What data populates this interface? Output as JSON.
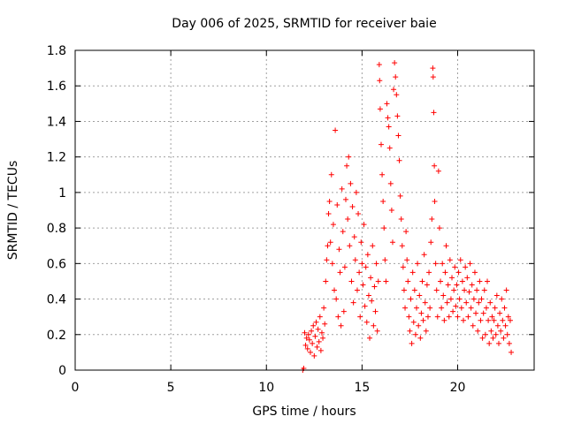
{
  "chart_data": {
    "type": "scatter",
    "title": "Day 006 of 2025, SRMTID for receiver baie",
    "xlabel": "GPS time / hours",
    "ylabel": "SRMTID / TECUs",
    "xlim": [
      0,
      24
    ],
    "ylim": [
      0,
      1.8
    ],
    "xticks": [
      0,
      5,
      10,
      15,
      20
    ],
    "yticks": [
      0,
      0.2,
      0.4,
      0.6,
      0.8,
      1,
      1.2,
      1.4,
      1.6,
      1.8
    ],
    "xtick_labels": [
      "0",
      "5",
      "10",
      "15",
      "20"
    ],
    "ytick_labels": [
      "0",
      "0.2",
      "0.4",
      "0.6",
      "0.8",
      "1",
      "1.2",
      "1.4",
      "1.6",
      "1.8"
    ],
    "grid": true,
    "marker": "plus",
    "color": "#ff0000",
    "series": [
      {
        "name": "SRMTID",
        "points": [
          [
            11.9,
            0.0
          ],
          [
            11.95,
            0.01
          ],
          [
            12.0,
            0.21
          ],
          [
            12.05,
            0.14
          ],
          [
            12.1,
            0.18
          ],
          [
            12.15,
            0.12
          ],
          [
            12.2,
            0.2
          ],
          [
            12.25,
            0.17
          ],
          [
            12.3,
            0.1
          ],
          [
            12.35,
            0.22
          ],
          [
            12.4,
            0.15
          ],
          [
            12.45,
            0.25
          ],
          [
            12.5,
            0.08
          ],
          [
            12.55,
            0.19
          ],
          [
            12.6,
            0.27
          ],
          [
            12.65,
            0.13
          ],
          [
            12.7,
            0.23
          ],
          [
            12.75,
            0.16
          ],
          [
            12.8,
            0.3
          ],
          [
            12.85,
            0.11
          ],
          [
            12.9,
            0.21
          ],
          [
            12.95,
            0.18
          ],
          [
            13.0,
            0.35
          ],
          [
            13.05,
            0.26
          ],
          [
            13.1,
            0.5
          ],
          [
            13.15,
            0.62
          ],
          [
            13.2,
            0.7
          ],
          [
            13.25,
            0.88
          ],
          [
            13.3,
            0.95
          ],
          [
            13.35,
            0.72
          ],
          [
            13.4,
            1.1
          ],
          [
            13.45,
            0.6
          ],
          [
            13.5,
            0.82
          ],
          [
            13.55,
            0.45
          ],
          [
            13.6,
            1.35
          ],
          [
            13.65,
            0.4
          ],
          [
            13.7,
            0.93
          ],
          [
            13.75,
            0.3
          ],
          [
            13.8,
            0.68
          ],
          [
            13.85,
            0.55
          ],
          [
            13.9,
            0.25
          ],
          [
            13.95,
            1.02
          ],
          [
            14.0,
            0.78
          ],
          [
            14.05,
            0.33
          ],
          [
            14.1,
            0.58
          ],
          [
            14.15,
            0.96
          ],
          [
            14.2,
            1.15
          ],
          [
            14.25,
            0.85
          ],
          [
            14.3,
            1.2
          ],
          [
            14.35,
            0.7
          ],
          [
            14.4,
            1.05
          ],
          [
            14.45,
            0.5
          ],
          [
            14.5,
            0.92
          ],
          [
            14.55,
            0.38
          ],
          [
            14.6,
            0.75
          ],
          [
            14.65,
            0.62
          ],
          [
            14.7,
            1.0
          ],
          [
            14.75,
            0.45
          ],
          [
            14.8,
            0.88
          ],
          [
            14.85,
            0.55
          ],
          [
            14.9,
            0.3
          ],
          [
            14.95,
            0.72
          ],
          [
            15.0,
            0.6
          ],
          [
            15.05,
            0.48
          ],
          [
            15.1,
            0.82
          ],
          [
            15.15,
            0.36
          ],
          [
            15.2,
            0.58
          ],
          [
            15.25,
            0.27
          ],
          [
            15.3,
            0.65
          ],
          [
            15.35,
            0.42
          ],
          [
            15.4,
            0.18
          ],
          [
            15.45,
            0.52
          ],
          [
            15.5,
            0.39
          ],
          [
            15.55,
            0.7
          ],
          [
            15.6,
            0.25
          ],
          [
            15.65,
            0.47
          ],
          [
            15.7,
            0.33
          ],
          [
            15.75,
            0.6
          ],
          [
            15.8,
            0.22
          ],
          [
            15.85,
            0.5
          ],
          [
            15.9,
            1.72
          ],
          [
            15.92,
            1.63
          ],
          [
            15.95,
            1.47
          ],
          [
            16.0,
            1.27
          ],
          [
            16.05,
            1.1
          ],
          [
            16.1,
            0.95
          ],
          [
            16.15,
            0.8
          ],
          [
            16.2,
            0.62
          ],
          [
            16.25,
            0.5
          ],
          [
            16.3,
            1.5
          ],
          [
            16.35,
            1.42
          ],
          [
            16.4,
            1.37
          ],
          [
            16.45,
            1.25
          ],
          [
            16.5,
            1.05
          ],
          [
            16.55,
            0.9
          ],
          [
            16.6,
            0.72
          ],
          [
            16.65,
            1.58
          ],
          [
            16.7,
            1.73
          ],
          [
            16.75,
            1.65
          ],
          [
            16.8,
            1.55
          ],
          [
            16.85,
            1.43
          ],
          [
            16.9,
            1.32
          ],
          [
            16.95,
            1.18
          ],
          [
            17.0,
            0.98
          ],
          [
            17.05,
            0.85
          ],
          [
            17.1,
            0.7
          ],
          [
            17.15,
            0.58
          ],
          [
            17.2,
            0.45
          ],
          [
            17.25,
            0.35
          ],
          [
            17.3,
            0.78
          ],
          [
            17.35,
            0.62
          ],
          [
            17.4,
            0.5
          ],
          [
            17.45,
            0.3
          ],
          [
            17.5,
            0.22
          ],
          [
            17.55,
            0.4
          ],
          [
            17.6,
            0.15
          ],
          [
            17.65,
            0.55
          ],
          [
            17.7,
            0.27
          ],
          [
            17.75,
            0.45
          ],
          [
            17.8,
            0.2
          ],
          [
            17.85,
            0.35
          ],
          [
            17.9,
            0.6
          ],
          [
            17.95,
            0.25
          ],
          [
            18.0,
            0.42
          ],
          [
            18.05,
            0.18
          ],
          [
            18.1,
            0.32
          ],
          [
            18.15,
            0.5
          ],
          [
            18.2,
            0.28
          ],
          [
            18.25,
            0.65
          ],
          [
            18.3,
            0.38
          ],
          [
            18.35,
            0.22
          ],
          [
            18.4,
            0.48
          ],
          [
            18.45,
            0.3
          ],
          [
            18.5,
            0.55
          ],
          [
            18.55,
            0.35
          ],
          [
            18.6,
            0.72
          ],
          [
            18.65,
            0.85
          ],
          [
            18.7,
            1.7
          ],
          [
            18.72,
            1.65
          ],
          [
            18.75,
            1.45
          ],
          [
            18.78,
            1.15
          ],
          [
            18.8,
            0.95
          ],
          [
            18.85,
            0.6
          ],
          [
            18.9,
            0.45
          ],
          [
            18.95,
            0.3
          ],
          [
            19.0,
            1.12
          ],
          [
            19.05,
            0.8
          ],
          [
            19.1,
            0.5
          ],
          [
            19.15,
            0.35
          ],
          [
            19.2,
            0.6
          ],
          [
            19.25,
            0.42
          ],
          [
            19.3,
            0.28
          ],
          [
            19.35,
            0.55
          ],
          [
            19.4,
            0.7
          ],
          [
            19.45,
            0.38
          ],
          [
            19.5,
            0.48
          ],
          [
            19.55,
            0.3
          ],
          [
            19.6,
            0.62
          ],
          [
            19.65,
            0.4
          ],
          [
            19.7,
            0.52
          ],
          [
            19.75,
            0.33
          ],
          [
            19.8,
            0.45
          ],
          [
            19.85,
            0.58
          ],
          [
            19.9,
            0.36
          ],
          [
            19.95,
            0.48
          ],
          [
            20.0,
            0.3
          ],
          [
            20.05,
            0.55
          ],
          [
            20.1,
            0.4
          ],
          [
            20.15,
            0.62
          ],
          [
            20.2,
            0.35
          ],
          [
            20.25,
            0.5
          ],
          [
            20.3,
            0.28
          ],
          [
            20.35,
            0.45
          ],
          [
            20.4,
            0.58
          ],
          [
            20.45,
            0.38
          ],
          [
            20.5,
            0.52
          ],
          [
            20.55,
            0.3
          ],
          [
            20.6,
            0.44
          ],
          [
            20.65,
            0.6
          ],
          [
            20.7,
            0.35
          ],
          [
            20.75,
            0.48
          ],
          [
            20.8,
            0.25
          ],
          [
            20.85,
            0.4
          ],
          [
            20.9,
            0.55
          ],
          [
            20.95,
            0.32
          ],
          [
            21.0,
            0.45
          ],
          [
            21.05,
            0.22
          ],
          [
            21.1,
            0.38
          ],
          [
            21.15,
            0.5
          ],
          [
            21.2,
            0.28
          ],
          [
            21.25,
            0.4
          ],
          [
            21.3,
            0.18
          ],
          [
            21.35,
            0.32
          ],
          [
            21.4,
            0.45
          ],
          [
            21.45,
            0.2
          ],
          [
            21.5,
            0.35
          ],
          [
            21.55,
            0.5
          ],
          [
            21.6,
            0.28
          ],
          [
            21.65,
            0.15
          ],
          [
            21.7,
            0.38
          ],
          [
            21.75,
            0.22
          ],
          [
            21.8,
            0.3
          ],
          [
            21.85,
            0.18
          ],
          [
            21.9,
            0.28
          ],
          [
            21.95,
            0.35
          ],
          [
            22.0,
            0.2
          ],
          [
            22.05,
            0.42
          ],
          [
            22.1,
            0.25
          ],
          [
            22.15,
            0.15
          ],
          [
            22.2,
            0.32
          ],
          [
            22.25,
            0.22
          ],
          [
            22.3,
            0.4
          ],
          [
            22.35,
            0.28
          ],
          [
            22.4,
            0.18
          ],
          [
            22.45,
            0.35
          ],
          [
            22.5,
            0.25
          ],
          [
            22.55,
            0.45
          ],
          [
            22.6,
            0.2
          ],
          [
            22.65,
            0.3
          ],
          [
            22.7,
            0.15
          ],
          [
            22.75,
            0.28
          ],
          [
            22.8,
            0.1
          ]
        ]
      }
    ]
  }
}
